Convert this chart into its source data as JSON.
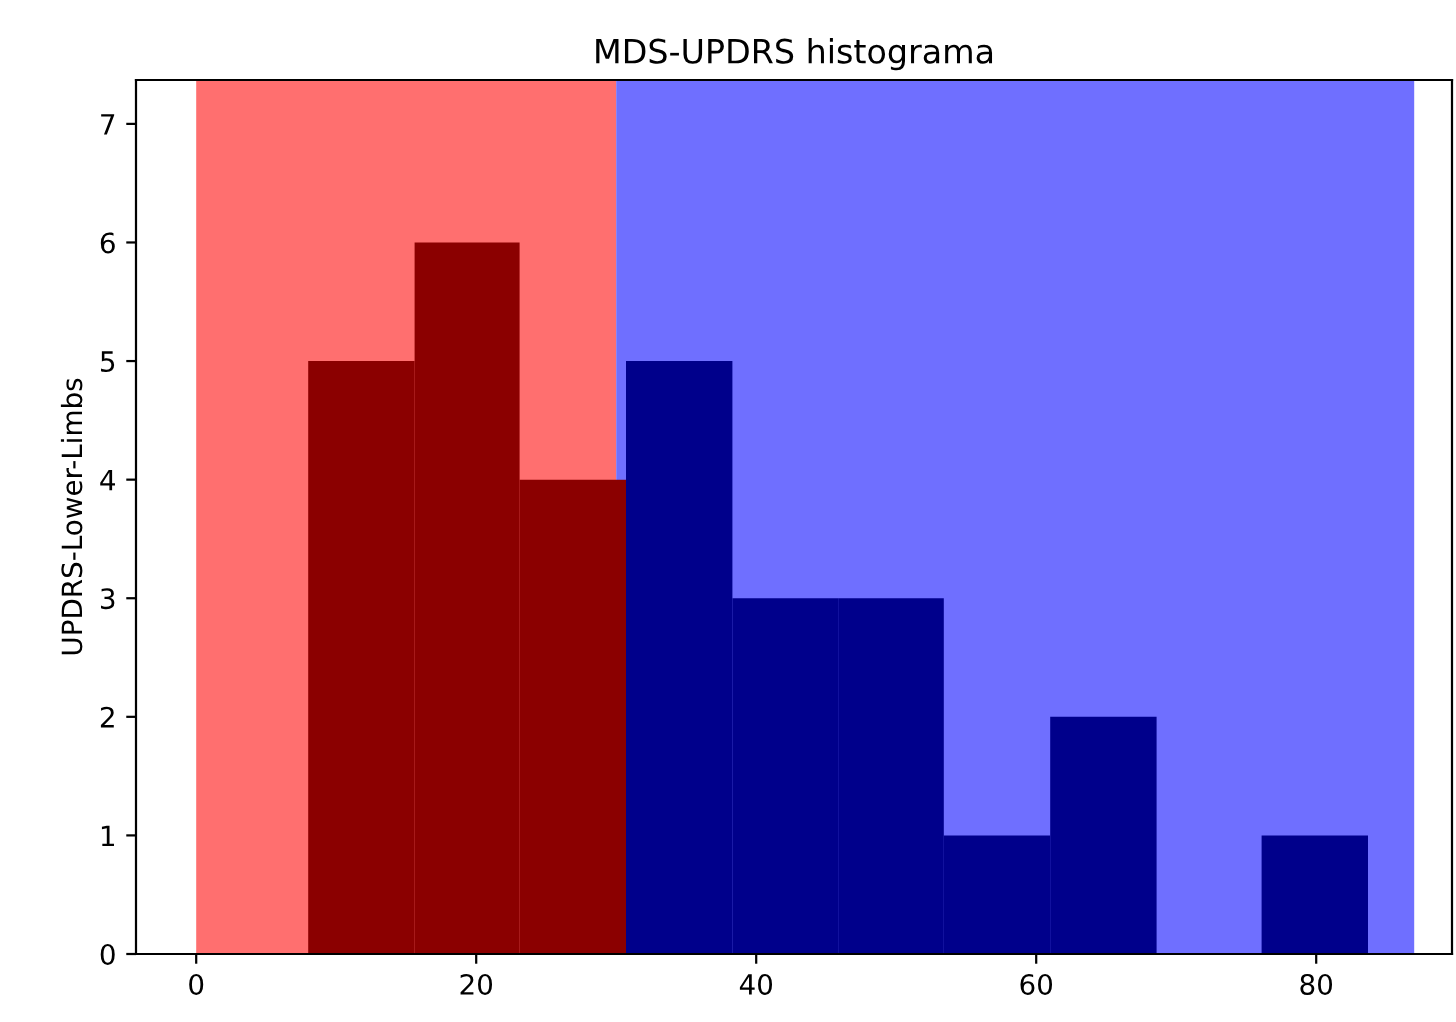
{
  "chart_data": {
    "type": "histogram",
    "title": "MDS-UPDRS histograma",
    "ylabel": "UPDRS-Lower-Limbs",
    "bins": [
      8,
      15.6,
      23.1,
      30.7,
      38.3,
      45.9,
      53.4,
      61.0,
      68.6,
      76.1,
      83.7
    ],
    "values": [
      5,
      6,
      4,
      5,
      3,
      3,
      1,
      2,
      0,
      1
    ],
    "colors": [
      "#8b0000",
      "#8b0000",
      "#8b0000",
      "#00008b",
      "#00008b",
      "#00008b",
      "#00008b",
      "#00008b",
      "#00008b",
      "#00008b"
    ],
    "bands": [
      {
        "axis": "x",
        "from": 0,
        "to": 30,
        "color": "#ff6f6f"
      },
      {
        "axis": "x",
        "from": 30,
        "to": 87,
        "color": "#6f6fff"
      }
    ],
    "xlim": [
      -4.3,
      89.7
    ],
    "xticks": [
      0,
      20,
      40,
      60,
      80
    ],
    "ylim": [
      0,
      7.37
    ],
    "yticks": [
      0,
      1,
      2,
      3,
      4,
      5,
      6,
      7
    ],
    "grid": false
  }
}
